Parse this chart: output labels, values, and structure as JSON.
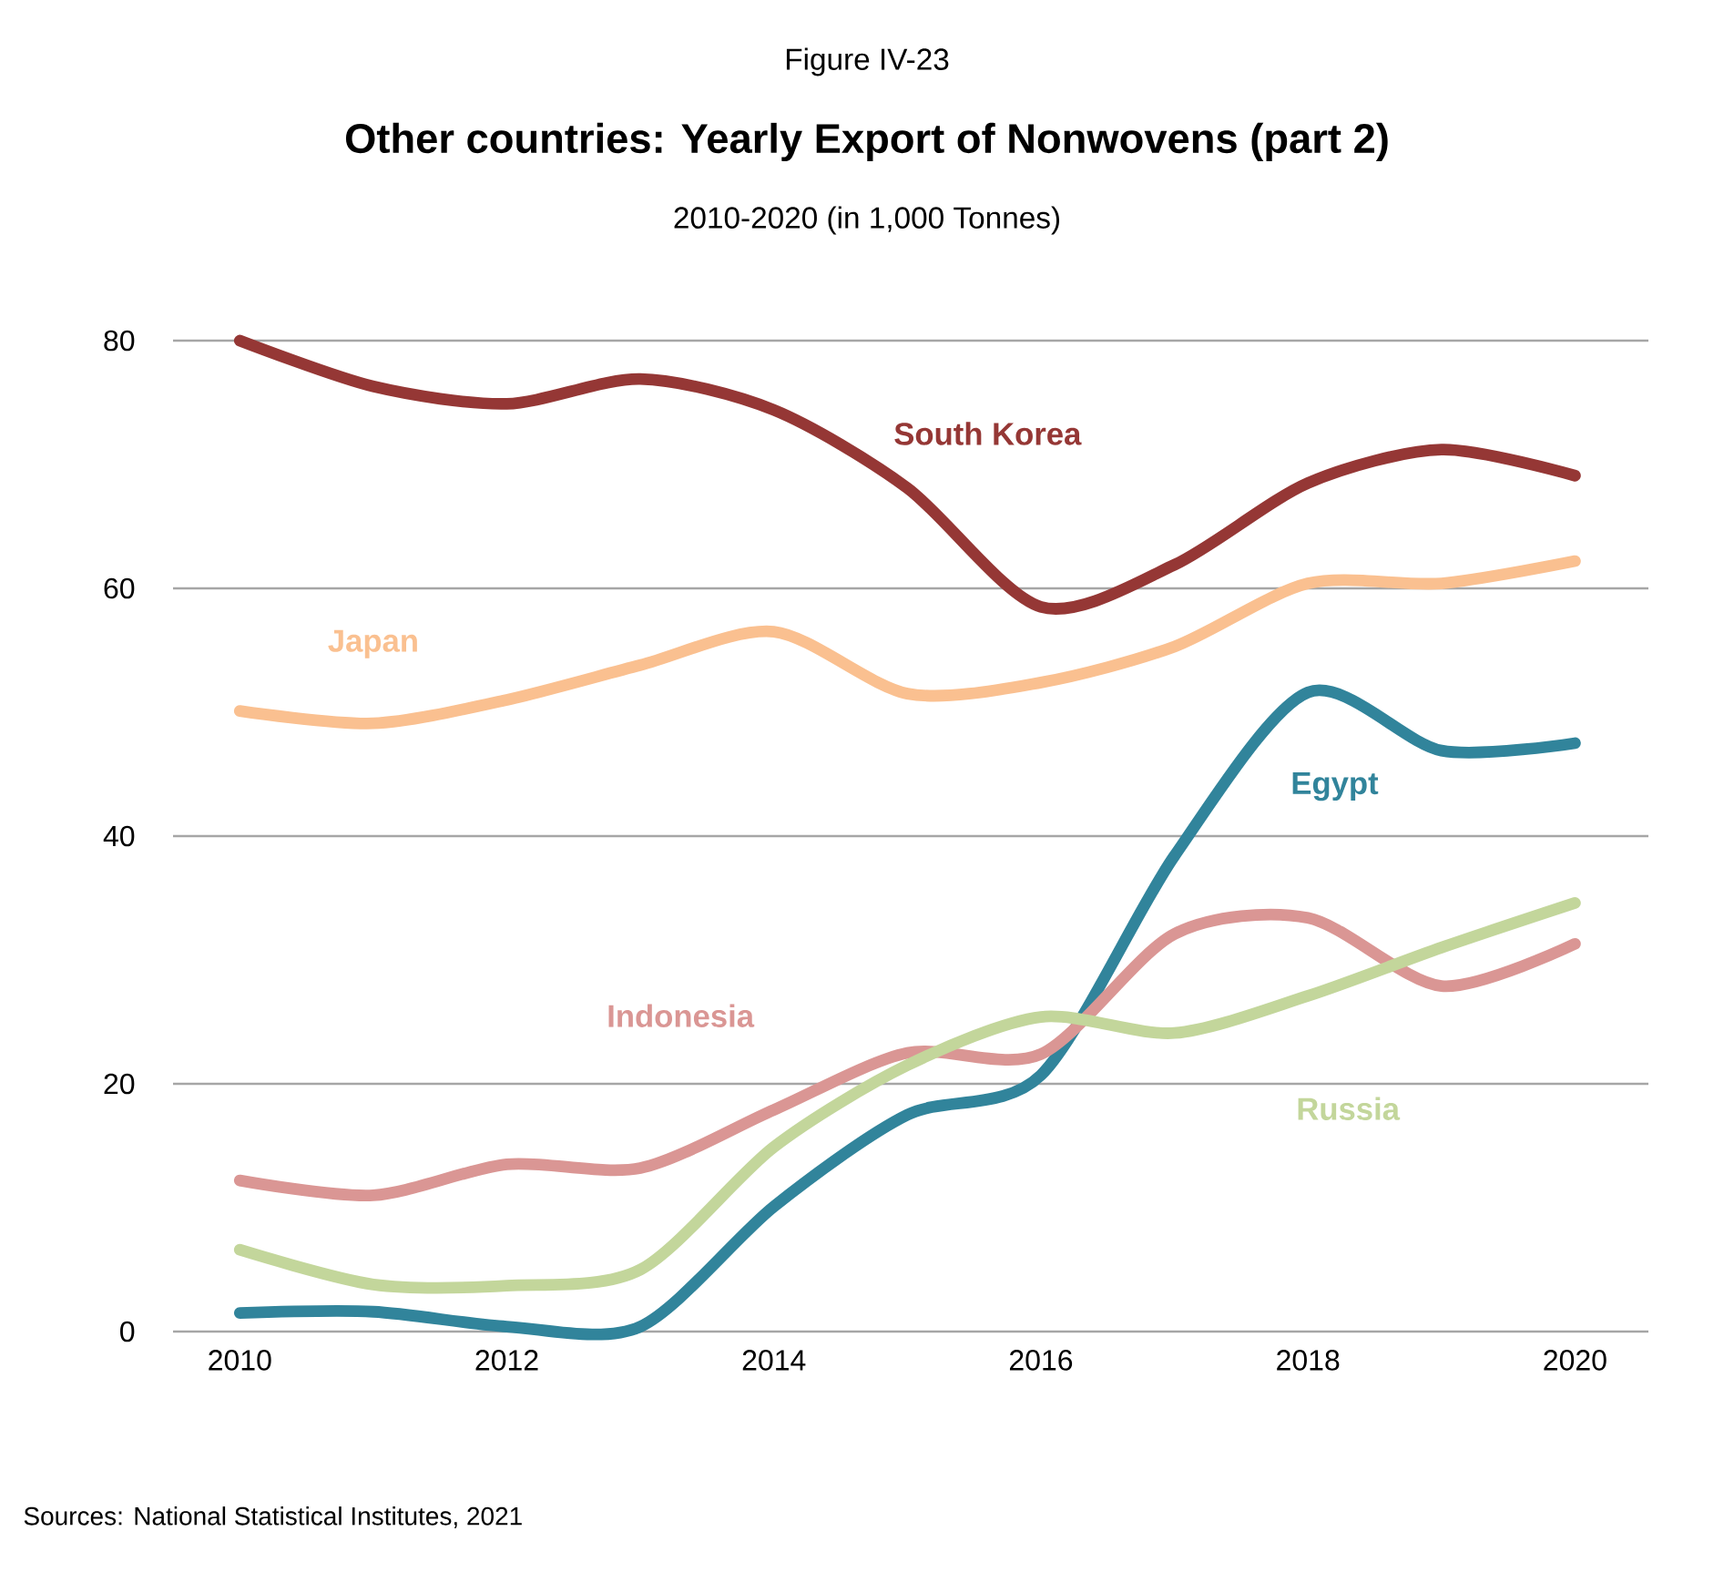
{
  "chart_data": {
    "type": "line",
    "title": "Other countries: Yearly Export of Nonwovens (part 2)",
    "subtitle": "2010-2020 (in 1,000 Tonnes)",
    "annotations": [
      "Figure IV-23",
      "Sources: National Statistical Institutes, 2021"
    ],
    "x": [
      2010,
      2011,
      2012,
      2013,
      2014,
      2015,
      2016,
      2017,
      2018,
      2019,
      2020
    ],
    "series": [
      {
        "name": "South Korea",
        "color": "#953735",
        "values": [
          80,
          76.3,
          74.9,
          76.9,
          74.4,
          68.1,
          58.5,
          61.9,
          68.5,
          71.2,
          69.1
        ]
      },
      {
        "name": "Japan",
        "color": "#fac090",
        "values": [
          50.1,
          49.1,
          51,
          53.8,
          56.5,
          51.5,
          52.4,
          55.3,
          60.4,
          60.4,
          62.2
        ]
      },
      {
        "name": "Egypt",
        "color": "#31849b",
        "values": [
          1.5,
          1.6,
          0.4,
          0.4,
          10.1,
          17.5,
          20.7,
          38.4,
          51.6,
          46.9,
          47.5
        ]
      },
      {
        "name": "Indonesia",
        "color": "#da9694",
        "values": [
          12.2,
          11,
          13.5,
          13.2,
          17.9,
          22.5,
          22.4,
          32.1,
          33.4,
          27.9,
          31.3
        ]
      },
      {
        "name": "Russia",
        "color": "#c3d69b",
        "values": [
          6.6,
          3.8,
          3.7,
          5,
          14.9,
          21.5,
          25.4,
          24.1,
          27.1,
          31,
          34.6
        ]
      }
    ],
    "xlim": [
      2009.5,
      2020.55
    ],
    "xticks": [
      2010,
      2012,
      2014,
      2016,
      2018,
      2020
    ],
    "ylim": [
      0,
      80
    ],
    "yticks": [
      0,
      20,
      40,
      60,
      80
    ],
    "grid": "y",
    "legend": false
  }
}
